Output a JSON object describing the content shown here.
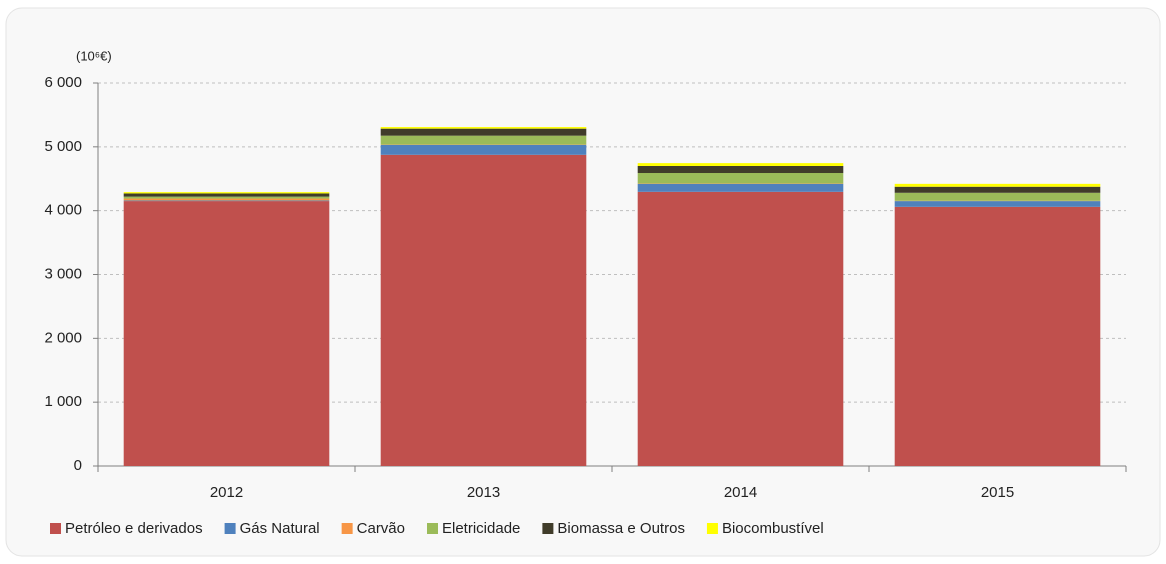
{
  "chart_data": {
    "type": "stacked_bar",
    "y_axis_label": "(10⁶€)",
    "categories": [
      "2012",
      "2013",
      "2014",
      "2015"
    ],
    "series": [
      {
        "name": "Petróleo e derivados",
        "color": "#c0504d",
        "values": [
          4150,
          4875,
          4295,
          4060
        ]
      },
      {
        "name": "Gás Natural",
        "color": "#4f81bd",
        "values": [
          10,
          155,
          125,
          90
        ]
      },
      {
        "name": "Carvão",
        "color": "#f79646",
        "values": [
          30,
          5,
          5,
          5
        ]
      },
      {
        "name": "Eletricidade",
        "color": "#9bbb59",
        "values": [
          30,
          140,
          165,
          125
        ]
      },
      {
        "name": "Biomassa e Outros",
        "color": "#403c2a",
        "values": [
          50,
          110,
          110,
          95
        ]
      },
      {
        "name": "Biocombustível",
        "color": "#ffff00",
        "values": [
          20,
          25,
          45,
          45
        ]
      }
    ],
    "ylim": [
      0,
      6000
    ],
    "yticks": [
      0,
      {
        "value": 1000,
        "label": "1 000"
      },
      {
        "value": 2000,
        "label": "2 000"
      },
      {
        "value": 3000,
        "label": "3 000"
      },
      {
        "value": 4000,
        "label": "4 000"
      },
      {
        "value": 5000,
        "label": "5 000"
      },
      {
        "value": 6000,
        "label": "6 000"
      }
    ],
    "grid": true,
    "legend": "bottom"
  }
}
